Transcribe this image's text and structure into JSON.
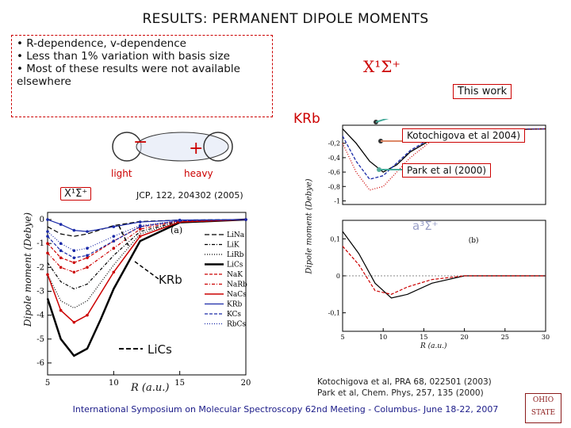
{
  "slide": {
    "title": "RESULTS: PERMANENT DIPOLE MOMENTS",
    "bullets": [
      "• R-dependence, v-dependence",
      "• Less than 1% variation with basis size",
      "• Most of these results were not available elsewhere"
    ],
    "state_label": "X¹Σ⁺",
    "state_label_left": "X¹Σ⁺",
    "triplet_label": "a³Σ⁺",
    "molecule": "KRb",
    "this_work": "This work",
    "ref_kotochigova_tag": "Kotochigova et al 2004)",
    "ref_park_tag": "Park et al (2000)",
    "diagram": {
      "minus": "−",
      "plus": "+",
      "light": "light",
      "heavy": "heavy"
    },
    "jcp_ref": "JCP, 122, 204302 (2005)",
    "krb_arrow_label": "KRb",
    "lics_arrow_label": "LiCs",
    "references": [
      "Kotochigova et al, PRA 68, 022501 (2003)",
      "Park et al, Chem. Phys, 257, 135 (2000)"
    ],
    "footer": "International Symposium on Molecular Spectroscopy 62nd Meeting - Columbus- June 18-22, 2007",
    "logo_text": "OHIO STATE"
  },
  "chart_data": [
    {
      "type": "line",
      "title": "(a)",
      "xlabel": "R (a.u.)",
      "ylabel": "Dipole moment (Debye)",
      "xlim": [
        5,
        20
      ],
      "ylim": [
        -6.5,
        0.3
      ],
      "x_ticks": [
        "5",
        "10",
        "15",
        "20"
      ],
      "y_ticks": [
        "0",
        "-1",
        "-2",
        "-3",
        "-4",
        "-5",
        "-6"
      ],
      "legend_position": "right",
      "series": [
        {
          "name": "LiNa",
          "values": [
            [
              5,
              -0.3
            ],
            [
              6,
              -0.6
            ],
            [
              7,
              -0.7
            ],
            [
              8,
              -0.6
            ],
            [
              10,
              -0.25
            ],
            [
              12,
              -0.08
            ],
            [
              15,
              -0.02
            ],
            [
              20,
              0
            ]
          ]
        },
        {
          "name": "LiK",
          "values": [
            [
              5,
              -1.8
            ],
            [
              6,
              -2.6
            ],
            [
              7,
              -2.9
            ],
            [
              8,
              -2.7
            ],
            [
              10,
              -1.5
            ],
            [
              12,
              -0.5
            ],
            [
              15,
              -0.08
            ],
            [
              20,
              0
            ]
          ]
        },
        {
          "name": "LiRb",
          "values": [
            [
              5,
              -2.3
            ],
            [
              6,
              -3.4
            ],
            [
              7,
              -3.7
            ],
            [
              8,
              -3.4
            ],
            [
              10,
              -1.9
            ],
            [
              12,
              -0.6
            ],
            [
              15,
              -0.1
            ],
            [
              20,
              0
            ]
          ]
        },
        {
          "name": "LiCs",
          "values": [
            [
              5,
              -3.3
            ],
            [
              6,
              -5.0
            ],
            [
              7,
              -5.7
            ],
            [
              8,
              -5.4
            ],
            [
              9,
              -4.2
            ],
            [
              10,
              -2.9
            ],
            [
              12,
              -0.9
            ],
            [
              15,
              -0.12
            ],
            [
              20,
              0
            ]
          ]
        },
        {
          "name": "NaK",
          "values": [
            [
              5,
              -1.0
            ],
            [
              6,
              -1.6
            ],
            [
              7,
              -1.8
            ],
            [
              8,
              -1.6
            ],
            [
              10,
              -0.9
            ],
            [
              12,
              -0.3
            ],
            [
              15,
              -0.05
            ],
            [
              20,
              0
            ]
          ]
        },
        {
          "name": "NaRb",
          "values": [
            [
              5,
              -1.4
            ],
            [
              6,
              -2.0
            ],
            [
              7,
              -2.2
            ],
            [
              8,
              -2.0
            ],
            [
              10,
              -1.2
            ],
            [
              12,
              -0.4
            ],
            [
              15,
              -0.06
            ],
            [
              20,
              0
            ]
          ]
        },
        {
          "name": "NaCs",
          "values": [
            [
              5,
              -2.3
            ],
            [
              6,
              -3.8
            ],
            [
              7,
              -4.3
            ],
            [
              8,
              -4.0
            ],
            [
              10,
              -2.2
            ],
            [
              12,
              -0.7
            ],
            [
              15,
              -0.1
            ],
            [
              20,
              0
            ]
          ]
        },
        {
          "name": "KRb",
          "values": [
            [
              5,
              0.0
            ],
            [
              6,
              -0.2
            ],
            [
              7,
              -0.45
            ],
            [
              8,
              -0.5
            ],
            [
              10,
              -0.3
            ],
            [
              12,
              -0.1
            ],
            [
              15,
              -0.02
            ],
            [
              20,
              0
            ]
          ]
        },
        {
          "name": "KCs",
          "values": [
            [
              5,
              -0.7
            ],
            [
              6,
              -1.3
            ],
            [
              7,
              -1.6
            ],
            [
              8,
              -1.5
            ],
            [
              10,
              -0.9
            ],
            [
              12,
              -0.3
            ],
            [
              15,
              -0.05
            ],
            [
              20,
              0
            ]
          ]
        },
        {
          "name": "RbCs",
          "values": [
            [
              5,
              -0.5
            ],
            [
              6,
              -1.0
            ],
            [
              7,
              -1.3
            ],
            [
              8,
              -1.2
            ],
            [
              10,
              -0.7
            ],
            [
              12,
              -0.25
            ],
            [
              15,
              -0.04
            ],
            [
              20,
              0
            ]
          ]
        }
      ]
    },
    {
      "type": "line",
      "title": "",
      "ylabel": "Dipole moment (Debye)",
      "xlim": [
        5,
        20
      ],
      "ylim": [
        -1.05,
        0.05
      ],
      "y_ticks": [
        "-0,2",
        "-0,4",
        "-0,6",
        "-0,8",
        "-1"
      ],
      "series": [
        {
          "values": [
            [
              5,
              0.0
            ],
            [
              6,
              -0.2
            ],
            [
              7,
              -0.45
            ],
            [
              8,
              -0.6
            ],
            [
              9,
              -0.5
            ],
            [
              10,
              -0.32
            ],
            [
              12,
              -0.1
            ],
            [
              15,
              -0.02
            ],
            [
              20,
              0
            ]
          ]
        },
        {
          "values": [
            [
              5,
              -0.1
            ],
            [
              6,
              -0.45
            ],
            [
              7,
              -0.7
            ],
            [
              8,
              -0.65
            ],
            [
              10,
              -0.3
            ],
            [
              12,
              -0.08
            ],
            [
              15,
              -0.01
            ],
            [
              20,
              0
            ]
          ]
        },
        {
          "values": [
            [
              5,
              -0.2
            ],
            [
              6,
              -0.6
            ],
            [
              7,
              -0.85
            ],
            [
              8,
              -0.8
            ],
            [
              10,
              -0.4
            ],
            [
              12,
              -0.1
            ],
            [
              15,
              -0.02
            ],
            [
              20,
              0
            ]
          ]
        }
      ]
    },
    {
      "type": "line",
      "title": "(b)",
      "xlabel": "R (a.u.)",
      "xlim": [
        5,
        30
      ],
      "ylim": [
        -0.15,
        0.15
      ],
      "x_ticks": [
        "5",
        "10",
        "15",
        "20",
        "25",
        "30"
      ],
      "y_ticks": [
        "0,1",
        "0",
        "-0,1"
      ],
      "series": [
        {
          "values": [
            [
              5,
              0.12
            ],
            [
              7,
              0.06
            ],
            [
              9,
              -0.02
            ],
            [
              11,
              -0.06
            ],
            [
              13,
              -0.05
            ],
            [
              16,
              -0.02
            ],
            [
              20,
              0
            ],
            [
              30,
              0
            ]
          ]
        },
        {
          "values": [
            [
              5,
              0.08
            ],
            [
              7,
              0.03
            ],
            [
              9,
              -0.04
            ],
            [
              11,
              -0.05
            ],
            [
              13,
              -0.03
            ],
            [
              16,
              -0.01
            ],
            [
              20,
              0
            ],
            [
              30,
              0
            ]
          ]
        }
      ]
    }
  ]
}
